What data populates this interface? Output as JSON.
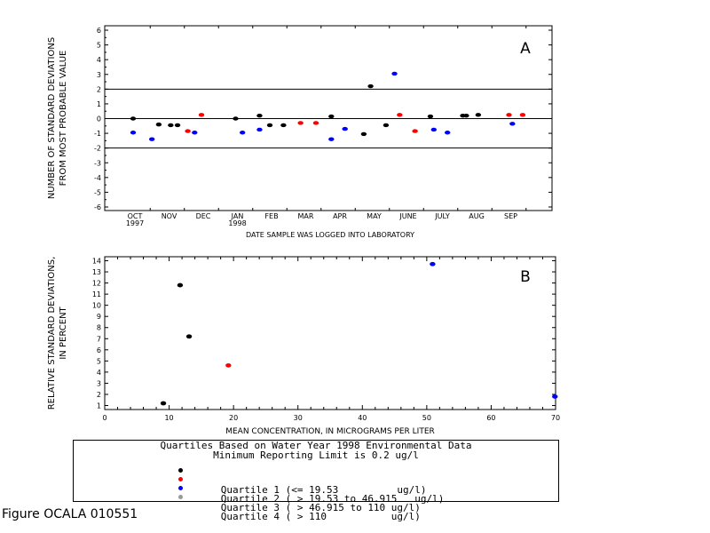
{
  "figure_caption": "Figure OCALA 010551",
  "legend": {
    "title_line1": "Quartiles Based on Water Year 1998 Environmental Data",
    "title_line2": "Minimum Reporting Limit is 0.2 ug/l",
    "items": [
      {
        "text": "Quartile 1 (<= 19.53          ug/l)",
        "color": "#000000"
      },
      {
        "text": "Quartile 2 ( > 19.53 to 46.915   ug/l)",
        "color": "#ff0000"
      },
      {
        "text": "Quartile 3 ( > 46.915 to 110 ug/l)",
        "color": "#0000ff"
      },
      {
        "text": "Quartile 4 ( > 110           ug/l)",
        "color": "#999999"
      }
    ]
  },
  "quartile_colors": {
    "q1": "#000000",
    "q2": "#ff0000",
    "q3": "#0000ff",
    "q4": "#999999"
  },
  "chart_data": [
    {
      "type": "scatter",
      "panel_label": "A",
      "xlabel": "DATE SAMPLE WAS LOGGED INTO LABORATORY",
      "ylabel_line1": "NUMBER OF STANDARD DEVIATIONS",
      "ylabel_line2": "FROM MOST PROBABLE VALUE",
      "ylim": [
        -6,
        6
      ],
      "yticks": [
        -6,
        -5,
        -4,
        -3,
        -2,
        -1,
        0,
        1,
        2,
        3,
        4,
        5,
        6
      ],
      "month_labels": [
        "OCT",
        "NOV",
        "DEC",
        "JAN",
        "FEB",
        "MAR",
        "APR",
        "MAY",
        "JUNE",
        "JULY",
        "AUG",
        "SEP"
      ],
      "year_labels": [
        {
          "month": "OCT",
          "text": "1997"
        },
        {
          "month": "JAN",
          "text": "1998"
        }
      ],
      "reference_lines": [
        2,
        0,
        -2
      ],
      "points": [
        {
          "month": 0.0,
          "y": 0.0,
          "q": 1
        },
        {
          "month": 0.0,
          "y": -0.95,
          "q": 3
        },
        {
          "month": 0.55,
          "y": -1.4,
          "q": 3
        },
        {
          "month": 0.75,
          "y": -0.4,
          "q": 1
        },
        {
          "month": 1.1,
          "y": -0.45,
          "q": 1
        },
        {
          "month": 1.3,
          "y": -0.45,
          "q": 1
        },
        {
          "month": 1.6,
          "y": -0.85,
          "q": 2
        },
        {
          "month": 1.8,
          "y": -0.95,
          "q": 3
        },
        {
          "month": 2.0,
          "y": 0.25,
          "q": 2
        },
        {
          "month": 3.0,
          "y": 0.0,
          "q": 1
        },
        {
          "month": 3.2,
          "y": -0.95,
          "q": 3
        },
        {
          "month": 3.7,
          "y": -0.75,
          "q": 3
        },
        {
          "month": 3.7,
          "y": 0.2,
          "q": 1
        },
        {
          "month": 4.0,
          "y": -0.45,
          "q": 1
        },
        {
          "month": 4.4,
          "y": -0.45,
          "q": 1
        },
        {
          "month": 4.9,
          "y": -0.3,
          "q": 2
        },
        {
          "month": 5.35,
          "y": -0.3,
          "q": 2
        },
        {
          "month": 5.8,
          "y": -1.4,
          "q": 3
        },
        {
          "month": 5.8,
          "y": 0.15,
          "q": 1
        },
        {
          "month": 6.2,
          "y": -0.7,
          "q": 3
        },
        {
          "month": 6.75,
          "y": -1.05,
          "q": 1
        },
        {
          "month": 6.95,
          "y": 2.2,
          "q": 1
        },
        {
          "month": 7.4,
          "y": -0.45,
          "q": 1
        },
        {
          "month": 7.65,
          "y": 3.05,
          "q": 3
        },
        {
          "month": 7.8,
          "y": 0.25,
          "q": 2
        },
        {
          "month": 8.25,
          "y": -0.85,
          "q": 2
        },
        {
          "month": 8.7,
          "y": 0.15,
          "q": 1
        },
        {
          "month": 8.8,
          "y": -0.75,
          "q": 3
        },
        {
          "month": 9.2,
          "y": -0.95,
          "q": 3
        },
        {
          "month": 9.65,
          "y": 0.2,
          "q": 1
        },
        {
          "month": 9.75,
          "y": 0.2,
          "q": 1
        },
        {
          "month": 10.1,
          "y": 0.25,
          "q": 1
        },
        {
          "month": 11.0,
          "y": 0.25,
          "q": 2
        },
        {
          "month": 11.1,
          "y": -0.35,
          "q": 3
        },
        {
          "month": 11.4,
          "y": 0.25,
          "q": 2
        }
      ]
    },
    {
      "type": "scatter",
      "panel_label": "B",
      "xlabel": "MEAN CONCENTRATION, IN MICROGRAMS PER LITER",
      "ylabel_line1": "RELATIVE STANDARD DEVIATIONS,",
      "ylabel_line2": "IN PERCENT",
      "xlim": [
        0,
        70
      ],
      "ylim": [
        0.5,
        14.5
      ],
      "xticks": [
        0,
        10,
        20,
        30,
        40,
        50,
        60,
        70
      ],
      "yticks": [
        1,
        2,
        3,
        4,
        5,
        6,
        7,
        8,
        9,
        10,
        11,
        12,
        13,
        14
      ],
      "points": [
        {
          "x": 9.1,
          "y": 1.2,
          "q": 1
        },
        {
          "x": 11.7,
          "y": 11.8,
          "q": 1
        },
        {
          "x": 13.1,
          "y": 7.2,
          "q": 1
        },
        {
          "x": 19.2,
          "y": 4.6,
          "q": 2
        },
        {
          "x": 50.9,
          "y": 13.7,
          "q": 3
        },
        {
          "x": 69.9,
          "y": 1.8,
          "q": 3
        }
      ]
    }
  ]
}
